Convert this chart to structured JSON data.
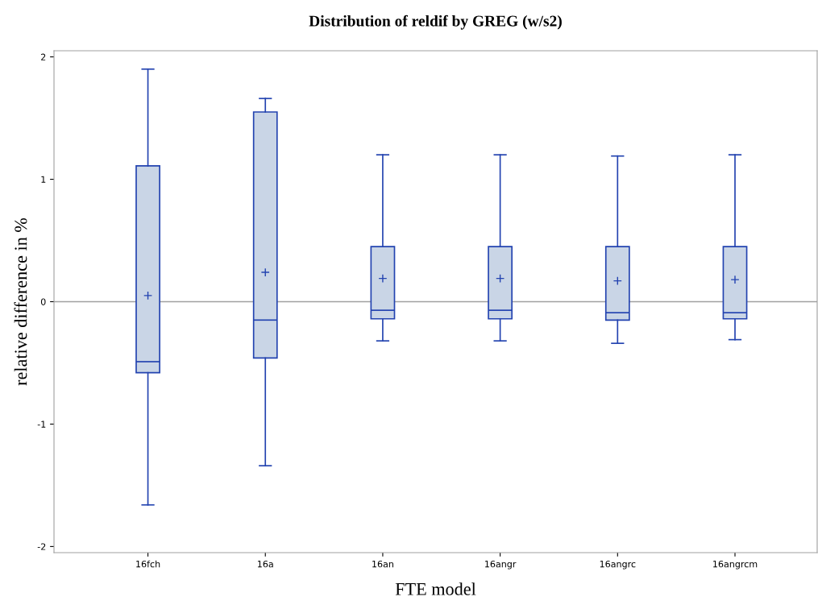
{
  "chart_data": {
    "type": "box",
    "title": "Distribution of reldif by GREG (w/s2)",
    "xlabel": "FTE model",
    "ylabel": "relative difference in %",
    "categories": [
      "16fch",
      "16a",
      "16an",
      "16angr",
      "16angrc",
      "16angrcm"
    ],
    "series": [
      {
        "color": "#2343b0",
        "boxes": [
          {
            "low": -1.66,
            "q1": -0.58,
            "median": -0.49,
            "q3": 1.11,
            "high": 1.9,
            "mean": 0.05
          },
          {
            "low": -1.34,
            "q1": -0.46,
            "median": -0.15,
            "q3": 1.55,
            "high": 1.66,
            "mean": 0.24
          },
          {
            "low": -0.32,
            "q1": -0.14,
            "median": -0.07,
            "q3": 0.45,
            "high": 1.2,
            "mean": 0.19
          },
          {
            "low": -0.32,
            "q1": -0.14,
            "median": -0.07,
            "q3": 0.45,
            "high": 1.2,
            "mean": 0.19
          },
          {
            "low": -0.34,
            "q1": -0.15,
            "median": -0.09,
            "q3": 0.45,
            "high": 1.19,
            "mean": 0.17
          },
          {
            "low": -0.31,
            "q1": -0.14,
            "median": -0.09,
            "q3": 0.45,
            "high": 1.2,
            "mean": 0.18
          }
        ]
      }
    ],
    "color": "#c9d5e6",
    "ylim": [
      -2.05,
      2.05
    ],
    "yticks": [
      {
        "value": -2,
        "label": "-2"
      },
      {
        "value": -1,
        "label": "-1"
      },
      0,
      1,
      2
    ],
    "ref_lines": [
      {
        "axis": "y",
        "value": 0,
        "color": "#a0a0a0"
      }
    ],
    "grid": false,
    "legend": false
  }
}
